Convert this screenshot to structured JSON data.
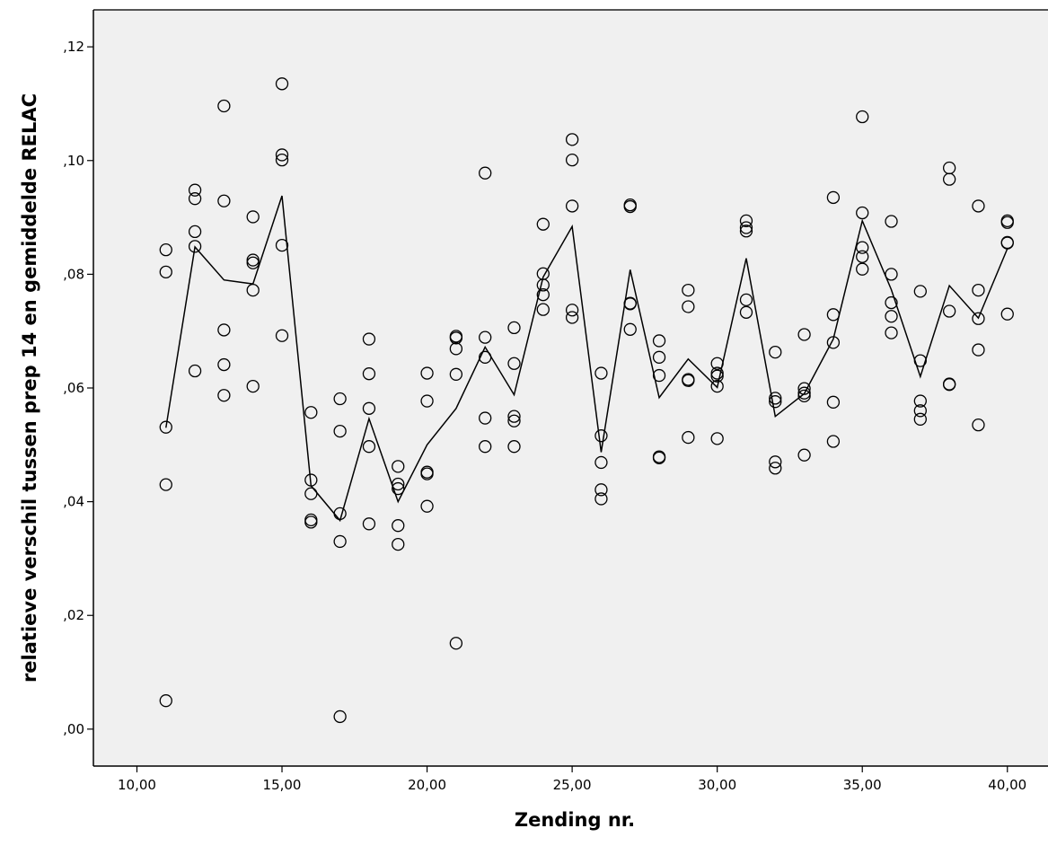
{
  "chart_data": {
    "type": "scatter",
    "xlabel": "Zending nr.",
    "ylabel": "relatieve verschil tussen prep 14 en gemiddelde RELAC",
    "xlim": [
      8.5,
      41.4
    ],
    "ylim": [
      -0.0065,
      0.1265
    ],
    "x_ticks": [
      10,
      15,
      20,
      25,
      30,
      35,
      40
    ],
    "x_tick_labels": [
      "10,00",
      "15,00",
      "20,00",
      "25,00",
      "30,00",
      "35,00",
      "40,00"
    ],
    "y_ticks": [
      0,
      0.02,
      0.04,
      0.06,
      0.08,
      0.1,
      0.12
    ],
    "y_tick_labels": [
      ",00",
      ",02",
      ",04",
      ",06",
      ",08",
      ",10",
      ",12"
    ],
    "grid": false,
    "background_color": "#f0f0f0",
    "marker_color": "#000000",
    "line_color": "#000000",
    "scatter_points": [
      {
        "x": 11,
        "values": [
          0.0843,
          0.0804,
          0.0531,
          0.043,
          0.005
        ]
      },
      {
        "x": 12,
        "values": [
          0.0948,
          0.0933,
          0.0875,
          0.0849,
          0.063
        ]
      },
      {
        "x": 13,
        "values": [
          0.1096,
          0.0929,
          0.0702,
          0.0641,
          0.0587
        ]
      },
      {
        "x": 14,
        "values": [
          0.0901,
          0.0825,
          0.082,
          0.0772,
          0.0603
        ]
      },
      {
        "x": 15,
        "values": [
          0.1135,
          0.101,
          0.1001,
          0.0851,
          0.0692
        ]
      },
      {
        "x": 16,
        "values": [
          0.0557,
          0.0438,
          0.0414,
          0.0368,
          0.0364
        ]
      },
      {
        "x": 17,
        "values": [
          0.0581,
          0.0524,
          0.0379,
          0.033,
          0.0022
        ]
      },
      {
        "x": 18,
        "values": [
          0.0686,
          0.0625,
          0.0564,
          0.0497,
          0.0361
        ]
      },
      {
        "x": 19,
        "values": [
          0.0462,
          0.0431,
          0.0423,
          0.0358,
          0.0325
        ]
      },
      {
        "x": 20,
        "values": [
          0.0626,
          0.0577,
          0.0452,
          0.0449,
          0.0392
        ]
      },
      {
        "x": 21,
        "values": [
          0.0691,
          0.0688,
          0.0669,
          0.0624,
          0.0151
        ]
      },
      {
        "x": 22,
        "values": [
          0.0978,
          0.0689,
          0.0654,
          0.0547,
          0.0497
        ]
      },
      {
        "x": 23,
        "values": [
          0.0706,
          0.0643,
          0.055,
          0.0542,
          0.0497
        ]
      },
      {
        "x": 24,
        "values": [
          0.0888,
          0.0801,
          0.0781,
          0.0764,
          0.0738
        ]
      },
      {
        "x": 25,
        "values": [
          0.1037,
          0.1001,
          0.092,
          0.0737,
          0.0724
        ]
      },
      {
        "x": 26,
        "values": [
          0.0626,
          0.0516,
          0.0469,
          0.0421,
          0.0405
        ]
      },
      {
        "x": 27,
        "values": [
          0.0922,
          0.0919,
          0.0749,
          0.0748,
          0.0703
        ]
      },
      {
        "x": 28,
        "values": [
          0.0683,
          0.0654,
          0.0622,
          0.0479,
          0.0477
        ]
      },
      {
        "x": 29,
        "values": [
          0.0772,
          0.0743,
          0.0615,
          0.0613,
          0.0513
        ]
      },
      {
        "x": 30,
        "values": [
          0.0643,
          0.0626,
          0.0621,
          0.0603,
          0.0511
        ]
      },
      {
        "x": 31,
        "values": [
          0.0894,
          0.0882,
          0.0876,
          0.0755,
          0.0733
        ]
      },
      {
        "x": 32,
        "values": [
          0.0663,
          0.0582,
          0.0576,
          0.047,
          0.0459
        ]
      },
      {
        "x": 33,
        "values": [
          0.0694,
          0.0599,
          0.0591,
          0.0586,
          0.0482
        ]
      },
      {
        "x": 34,
        "values": [
          0.0935,
          0.0729,
          0.068,
          0.0575,
          0.0506
        ]
      },
      {
        "x": 35,
        "values": [
          0.1077,
          0.0908,
          0.0847,
          0.0831,
          0.0809
        ]
      },
      {
        "x": 36,
        "values": [
          0.0893,
          0.08,
          0.075,
          0.0726,
          0.0697
        ]
      },
      {
        "x": 37,
        "values": [
          0.077,
          0.0648,
          0.0577,
          0.056,
          0.0545
        ]
      },
      {
        "x": 38,
        "values": [
          0.0987,
          0.0967,
          0.0735,
          0.0607,
          0.0606
        ]
      },
      {
        "x": 39,
        "values": [
          0.092,
          0.0772,
          0.0722,
          0.0667,
          0.0535
        ]
      },
      {
        "x": 40,
        "values": [
          0.0894,
          0.0891,
          0.0856,
          0.0855,
          0.073
        ]
      }
    ],
    "mean_line": {
      "x": [
        11,
        12,
        13,
        14,
        15,
        16,
        17,
        18,
        19,
        20,
        21,
        22,
        23,
        24,
        25,
        26,
        27,
        28,
        29,
        30,
        31,
        32,
        33,
        34,
        35,
        36,
        37,
        38,
        39,
        40
      ],
      "y": [
        0.053,
        0.0848,
        0.079,
        0.0783,
        0.0938,
        0.0428,
        0.0367,
        0.0546,
        0.04,
        0.05,
        0.0564,
        0.0672,
        0.0588,
        0.0795,
        0.0884,
        0.0487,
        0.0808,
        0.0583,
        0.0651,
        0.0601,
        0.0828,
        0.055,
        0.059,
        0.0686,
        0.0894,
        0.0773,
        0.062,
        0.078,
        0.0723,
        0.0845
      ]
    }
  }
}
